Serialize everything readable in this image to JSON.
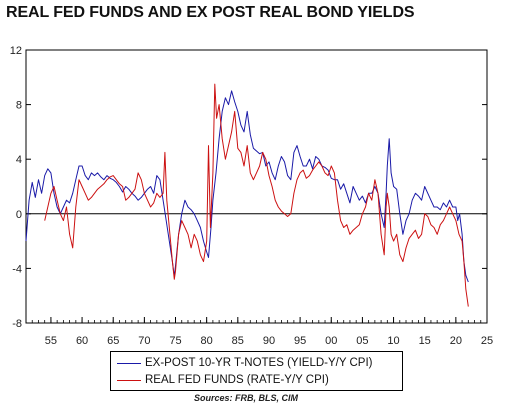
{
  "title": "REAL FED FUNDS AND EX POST REAL BOND YIELDS",
  "source": "Sources:  FRB, BLS, CIM",
  "colors": {
    "tnote": "#1a1aa8",
    "fedfunds": "#cc1111",
    "zero_line": "#000000"
  },
  "chart_data": {
    "type": "line",
    "title": "REAL FED FUNDS AND EX POST REAL BOND YIELDS",
    "xlabel": "",
    "ylabel": "",
    "xlim": [
      1951,
      2025
    ],
    "ylim": [
      -8,
      12
    ],
    "x_ticks": [
      55,
      60,
      65,
      70,
      75,
      80,
      85,
      90,
      95,
      0,
      5,
      10,
      15,
      20,
      25
    ],
    "x_tick_labels": [
      "55",
      "60",
      "65",
      "70",
      "75",
      "80",
      "85",
      "90",
      "95",
      "00",
      "05",
      "10",
      "15",
      "20",
      "25"
    ],
    "y_ticks": [
      -8,
      -4,
      0,
      4,
      8,
      12
    ],
    "y_tick_labels": [
      "-8",
      "-4",
      "0",
      "4",
      "8",
      "12"
    ],
    "reference_line": 0,
    "legend_position": "bottom-center",
    "series": [
      {
        "name": "EX-POST 10-YR T-NOTES (YIELD-Y/Y CPI)",
        "color": "#1a1aa8",
        "points": [
          [
            1951.0,
            -2.0
          ],
          [
            1951.5,
            1.0
          ],
          [
            1952.0,
            2.3
          ],
          [
            1952.5,
            1.2
          ],
          [
            1953.0,
            2.5
          ],
          [
            1953.5,
            1.5
          ],
          [
            1954.0,
            2.8
          ],
          [
            1954.5,
            3.3
          ],
          [
            1955.0,
            3.0
          ],
          [
            1955.5,
            1.5
          ],
          [
            1956.0,
            0.5
          ],
          [
            1956.5,
            0.0
          ],
          [
            1957.0,
            0.5
          ],
          [
            1957.5,
            1.0
          ],
          [
            1958.0,
            0.8
          ],
          [
            1958.5,
            1.5
          ],
          [
            1959.0,
            2.5
          ],
          [
            1959.5,
            3.5
          ],
          [
            1960.0,
            3.5
          ],
          [
            1960.5,
            2.8
          ],
          [
            1961.0,
            2.5
          ],
          [
            1961.5,
            3.0
          ],
          [
            1962.0,
            2.8
          ],
          [
            1962.5,
            3.0
          ],
          [
            1963.0,
            2.7
          ],
          [
            1963.5,
            2.5
          ],
          [
            1964.0,
            2.8
          ],
          [
            1964.5,
            2.6
          ],
          [
            1965.0,
            2.5
          ],
          [
            1965.5,
            2.3
          ],
          [
            1966.0,
            2.0
          ],
          [
            1966.5,
            1.6
          ],
          [
            1967.0,
            2.0
          ],
          [
            1967.5,
            1.8
          ],
          [
            1968.0,
            1.5
          ],
          [
            1968.5,
            1.3
          ],
          [
            1969.0,
            1.0
          ],
          [
            1969.5,
            1.2
          ],
          [
            1970.0,
            1.5
          ],
          [
            1970.5,
            1.8
          ],
          [
            1971.0,
            2.0
          ],
          [
            1971.5,
            1.5
          ],
          [
            1972.0,
            2.8
          ],
          [
            1972.5,
            2.5
          ],
          [
            1973.0,
            1.0
          ],
          [
            1973.5,
            -0.5
          ],
          [
            1974.0,
            -2.0
          ],
          [
            1974.5,
            -3.5
          ],
          [
            1974.8,
            -4.6
          ],
          [
            1975.0,
            -3.8
          ],
          [
            1975.5,
            -1.5
          ],
          [
            1976.0,
            0.0
          ],
          [
            1976.5,
            1.0
          ],
          [
            1977.0,
            0.5
          ],
          [
            1977.5,
            0.3
          ],
          [
            1978.0,
            0.0
          ],
          [
            1978.5,
            -0.5
          ],
          [
            1979.0,
            -1.0
          ],
          [
            1979.5,
            -2.0
          ],
          [
            1980.0,
            -2.8
          ],
          [
            1980.3,
            -3.2
          ],
          [
            1980.7,
            -1.0
          ],
          [
            1981.0,
            1.0
          ],
          [
            1981.5,
            3.0
          ],
          [
            1982.0,
            5.5
          ],
          [
            1982.5,
            7.5
          ],
          [
            1983.0,
            8.5
          ],
          [
            1983.5,
            8.0
          ],
          [
            1984.0,
            9.0
          ],
          [
            1984.5,
            8.2
          ],
          [
            1985.0,
            7.5
          ],
          [
            1985.5,
            6.5
          ],
          [
            1986.0,
            6.0
          ],
          [
            1986.5,
            7.5
          ],
          [
            1987.0,
            5.8
          ],
          [
            1987.5,
            4.8
          ],
          [
            1988.0,
            4.6
          ],
          [
            1988.5,
            4.4
          ],
          [
            1989.0,
            4.5
          ],
          [
            1989.5,
            3.5
          ],
          [
            1990.0,
            3.8
          ],
          [
            1990.5,
            3.0
          ],
          [
            1991.0,
            2.5
          ],
          [
            1991.5,
            3.5
          ],
          [
            1992.0,
            4.2
          ],
          [
            1992.5,
            3.8
          ],
          [
            1993.0,
            2.8
          ],
          [
            1993.5,
            2.5
          ],
          [
            1994.0,
            4.5
          ],
          [
            1994.5,
            5.0
          ],
          [
            1995.0,
            4.2
          ],
          [
            1995.5,
            3.5
          ],
          [
            1996.0,
            3.5
          ],
          [
            1996.5,
            4.0
          ],
          [
            1997.0,
            3.3
          ],
          [
            1997.5,
            4.2
          ],
          [
            1998.0,
            4.0
          ],
          [
            1998.5,
            3.5
          ],
          [
            1999.0,
            3.4
          ],
          [
            1999.5,
            3.2
          ],
          [
            2000.0,
            2.6
          ],
          [
            2000.5,
            2.5
          ],
          [
            2001.0,
            2.5
          ],
          [
            2001.5,
            1.8
          ],
          [
            2002.0,
            2.2
          ],
          [
            2002.5,
            1.5
          ],
          [
            2003.0,
            0.8
          ],
          [
            2003.5,
            2.0
          ],
          [
            2004.0,
            1.5
          ],
          [
            2004.5,
            1.0
          ],
          [
            2005.0,
            1.3
          ],
          [
            2005.5,
            0.8
          ],
          [
            2006.0,
            1.5
          ],
          [
            2006.5,
            1.5
          ],
          [
            2007.0,
            2.0
          ],
          [
            2007.5,
            1.5
          ],
          [
            2008.0,
            0.0
          ],
          [
            2008.5,
            -1.0
          ],
          [
            2008.8,
            1.5
          ],
          [
            2009.0,
            3.5
          ],
          [
            2009.3,
            5.5
          ],
          [
            2009.6,
            3.0
          ],
          [
            2010.0,
            2.0
          ],
          [
            2010.5,
            1.8
          ],
          [
            2011.0,
            0.0
          ],
          [
            2011.5,
            -1.5
          ],
          [
            2012.0,
            -0.5
          ],
          [
            2012.5,
            0.0
          ],
          [
            2013.0,
            1.0
          ],
          [
            2013.5,
            1.5
          ],
          [
            2014.0,
            1.3
          ],
          [
            2014.5,
            1.0
          ],
          [
            2015.0,
            2.0
          ],
          [
            2015.5,
            1.5
          ],
          [
            2016.0,
            1.0
          ],
          [
            2016.5,
            0.5
          ],
          [
            2017.0,
            0.5
          ],
          [
            2017.5,
            0.3
          ],
          [
            2018.0,
            0.8
          ],
          [
            2018.5,
            0.5
          ],
          [
            2019.0,
            1.0
          ],
          [
            2019.5,
            0.5
          ],
          [
            2020.0,
            0.5
          ],
          [
            2020.3,
            -0.5
          ],
          [
            2020.6,
            0.0
          ],
          [
            2021.0,
            -1.5
          ],
          [
            2021.3,
            -3.5
          ],
          [
            2021.6,
            -4.5
          ],
          [
            2022.0,
            -5.0
          ]
        ]
      },
      {
        "name": "REAL FED FUNDS (RATE-Y/Y CPI)",
        "color": "#cc1111",
        "points": [
          [
            1954.0,
            -0.5
          ],
          [
            1954.5,
            0.5
          ],
          [
            1955.0,
            1.5
          ],
          [
            1955.5,
            2.0
          ],
          [
            1956.0,
            1.0
          ],
          [
            1956.5,
            0.0
          ],
          [
            1957.0,
            -0.5
          ],
          [
            1957.5,
            0.5
          ],
          [
            1958.0,
            -1.5
          ],
          [
            1958.5,
            -2.5
          ],
          [
            1959.0,
            0.5
          ],
          [
            1959.5,
            2.5
          ],
          [
            1960.0,
            2.0
          ],
          [
            1960.5,
            1.5
          ],
          [
            1961.0,
            1.0
          ],
          [
            1961.5,
            1.2
          ],
          [
            1962.0,
            1.5
          ],
          [
            1962.5,
            1.8
          ],
          [
            1963.0,
            2.0
          ],
          [
            1963.5,
            2.2
          ],
          [
            1964.0,
            2.5
          ],
          [
            1964.5,
            2.7
          ],
          [
            1965.0,
            2.8
          ],
          [
            1965.5,
            2.5
          ],
          [
            1966.0,
            2.2
          ],
          [
            1966.5,
            2.0
          ],
          [
            1967.0,
            1.0
          ],
          [
            1967.5,
            1.2
          ],
          [
            1968.0,
            1.5
          ],
          [
            1968.5,
            1.8
          ],
          [
            1969.0,
            3.0
          ],
          [
            1969.5,
            2.5
          ],
          [
            1970.0,
            1.5
          ],
          [
            1970.5,
            1.0
          ],
          [
            1971.0,
            0.5
          ],
          [
            1971.5,
            0.8
          ],
          [
            1972.0,
            1.5
          ],
          [
            1972.5,
            1.2
          ],
          [
            1973.0,
            1.5
          ],
          [
            1973.3,
            4.5
          ],
          [
            1973.6,
            1.0
          ],
          [
            1974.0,
            -1.0
          ],
          [
            1974.5,
            -3.5
          ],
          [
            1974.8,
            -4.8
          ],
          [
            1975.0,
            -4.2
          ],
          [
            1975.5,
            -1.5
          ],
          [
            1976.0,
            -0.5
          ],
          [
            1976.5,
            -1.0
          ],
          [
            1977.0,
            -1.5
          ],
          [
            1977.5,
            -2.5
          ],
          [
            1978.0,
            -1.5
          ],
          [
            1978.5,
            -2.0
          ],
          [
            1979.0,
            -3.0
          ],
          [
            1979.5,
            -3.5
          ],
          [
            1980.0,
            -2.0
          ],
          [
            1980.3,
            5.0
          ],
          [
            1980.6,
            -1.0
          ],
          [
            1981.0,
            3.0
          ],
          [
            1981.3,
            9.5
          ],
          [
            1981.6,
            7.0
          ],
          [
            1982.0,
            8.0
          ],
          [
            1982.5,
            5.5
          ],
          [
            1983.0,
            4.0
          ],
          [
            1983.5,
            5.0
          ],
          [
            1984.0,
            6.0
          ],
          [
            1984.5,
            7.5
          ],
          [
            1985.0,
            4.8
          ],
          [
            1985.5,
            4.5
          ],
          [
            1986.0,
            3.5
          ],
          [
            1986.5,
            5.0
          ],
          [
            1987.0,
            3.0
          ],
          [
            1987.5,
            2.5
          ],
          [
            1988.0,
            3.0
          ],
          [
            1988.5,
            3.5
          ],
          [
            1989.0,
            4.5
          ],
          [
            1989.5,
            4.0
          ],
          [
            1990.0,
            2.8
          ],
          [
            1990.5,
            2.0
          ],
          [
            1991.0,
            1.0
          ],
          [
            1991.5,
            0.5
          ],
          [
            1992.0,
            0.2
          ],
          [
            1992.5,
            0.0
          ],
          [
            1993.0,
            -0.2
          ],
          [
            1993.5,
            0.0
          ],
          [
            1994.0,
            1.5
          ],
          [
            1994.5,
            2.5
          ],
          [
            1995.0,
            3.0
          ],
          [
            1995.5,
            3.2
          ],
          [
            1996.0,
            2.6
          ],
          [
            1996.5,
            2.8
          ],
          [
            1997.0,
            3.2
          ],
          [
            1997.5,
            3.5
          ],
          [
            1998.0,
            3.8
          ],
          [
            1998.5,
            3.5
          ],
          [
            1999.0,
            3.0
          ],
          [
            1999.5,
            2.8
          ],
          [
            2000.0,
            3.5
          ],
          [
            2000.5,
            3.0
          ],
          [
            2001.0,
            1.0
          ],
          [
            2001.5,
            -0.5
          ],
          [
            2002.0,
            -1.0
          ],
          [
            2002.5,
            -0.8
          ],
          [
            2003.0,
            -1.5
          ],
          [
            2003.5,
            -1.2
          ],
          [
            2004.0,
            -1.0
          ],
          [
            2004.5,
            -0.8
          ],
          [
            2005.0,
            0.0
          ],
          [
            2005.5,
            0.5
          ],
          [
            2006.0,
            1.5
          ],
          [
            2006.5,
            1.0
          ],
          [
            2007.0,
            2.5
          ],
          [
            2007.5,
            1.5
          ],
          [
            2008.0,
            -1.5
          ],
          [
            2008.5,
            -3.0
          ],
          [
            2008.8,
            0.5
          ],
          [
            2009.0,
            1.5
          ],
          [
            2009.3,
            0.5
          ],
          [
            2009.6,
            -1.5
          ],
          [
            2010.0,
            -2.0
          ],
          [
            2010.5,
            -1.5
          ],
          [
            2011.0,
            -3.0
          ],
          [
            2011.5,
            -3.5
          ],
          [
            2012.0,
            -2.5
          ],
          [
            2012.5,
            -1.8
          ],
          [
            2013.0,
            -1.5
          ],
          [
            2013.5,
            -1.2
          ],
          [
            2014.0,
            -1.8
          ],
          [
            2014.5,
            -1.5
          ],
          [
            2015.0,
            0.0
          ],
          [
            2015.5,
            -0.2
          ],
          [
            2016.0,
            -0.8
          ],
          [
            2016.5,
            -1.0
          ],
          [
            2017.0,
            -1.5
          ],
          [
            2017.5,
            -0.8
          ],
          [
            2018.0,
            -0.5
          ],
          [
            2018.5,
            0.0
          ],
          [
            2019.0,
            0.5
          ],
          [
            2019.5,
            0.0
          ],
          [
            2020.0,
            -0.5
          ],
          [
            2020.5,
            -1.5
          ],
          [
            2021.0,
            -2.0
          ],
          [
            2021.3,
            -3.5
          ],
          [
            2021.6,
            -5.5
          ],
          [
            2022.0,
            -6.8
          ]
        ]
      }
    ]
  }
}
